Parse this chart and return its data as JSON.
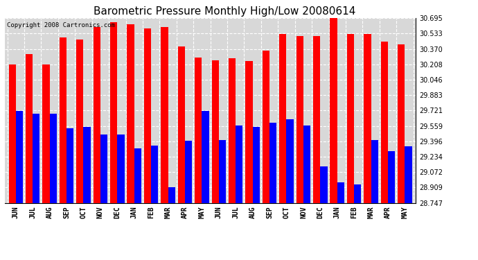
{
  "title": "Barometric Pressure Monthly High/Low 20080614",
  "copyright": "Copyright 2008 Cartronics.com",
  "months": [
    "JUN",
    "JUL",
    "AUG",
    "SEP",
    "OCT",
    "NOV",
    "DEC",
    "JAN",
    "FEB",
    "MAR",
    "APR",
    "MAY",
    "JUN",
    "JUL",
    "AUG",
    "SEP",
    "OCT",
    "NOV",
    "DEC",
    "JAN",
    "FEB",
    "MAR",
    "APR",
    "MAY"
  ],
  "highs": [
    30.21,
    30.32,
    30.21,
    30.49,
    30.47,
    30.6,
    30.65,
    30.63,
    30.59,
    30.6,
    30.4,
    30.28,
    30.25,
    30.27,
    30.24,
    30.35,
    30.53,
    30.51,
    30.51,
    30.7,
    30.53,
    30.53,
    30.45,
    30.42
  ],
  "lows": [
    29.72,
    29.69,
    29.69,
    29.53,
    29.55,
    29.47,
    29.47,
    29.32,
    29.35,
    28.91,
    29.4,
    29.72,
    29.41,
    29.56,
    29.55,
    29.59,
    29.63,
    29.56,
    29.13,
    28.96,
    28.94,
    29.41,
    29.29,
    29.34
  ],
  "high_color": "#ff0000",
  "low_color": "#0000ff",
  "bg_color": "#ffffff",
  "plot_bg_color": "#d8d8d8",
  "grid_color": "#ffffff",
  "ylim_min": 28.747,
  "ylim_max": 30.695,
  "yticks": [
    28.747,
    28.909,
    29.072,
    29.234,
    29.396,
    29.559,
    29.721,
    29.883,
    30.046,
    30.208,
    30.37,
    30.533,
    30.695
  ],
  "bar_width": 0.42,
  "title_fontsize": 11,
  "tick_fontsize": 7,
  "copyright_fontsize": 6.5
}
